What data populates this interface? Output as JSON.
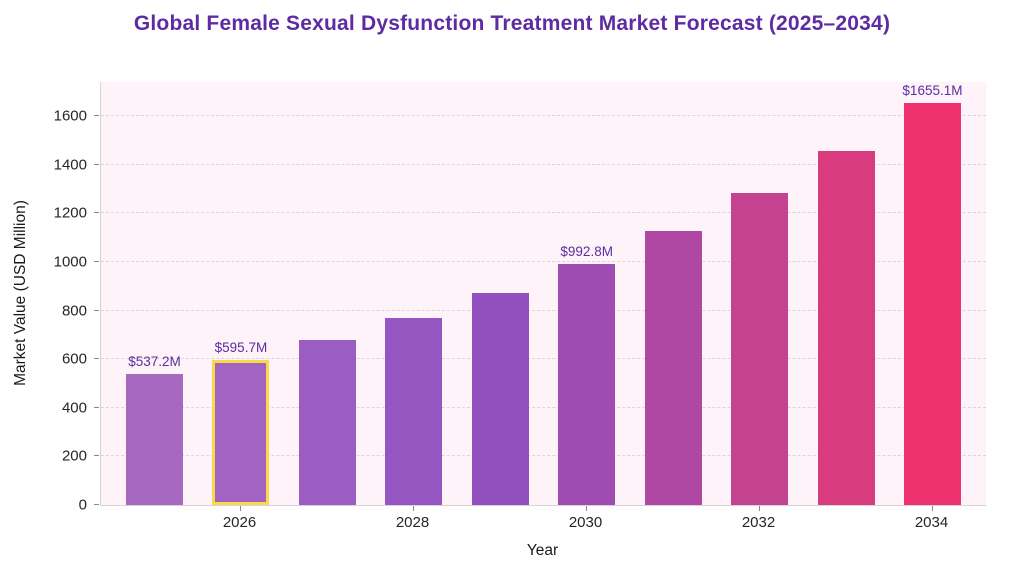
{
  "title": "Global Female Sexual Dysfunction Treatment Market Forecast (2025–2034)",
  "title_color": "#5e2ba2",
  "annotation_color": "#5b2da1",
  "plot_background_color": "#fdf3f9",
  "highlight_border_color": "#f8d94a",
  "chart_data": {
    "type": "bar",
    "title": "Global Female Sexual Dysfunction Treatment Market Forecast (2025–2034)",
    "xlabel": "Year",
    "ylabel": "Market Value (USD Million)",
    "categories": [
      "2025",
      "2026",
      "2027",
      "2028",
      "2029",
      "2030",
      "2031",
      "2032",
      "2033",
      "2034"
    ],
    "values": [
      537.2,
      595.7,
      676.9,
      769.0,
      873.7,
      992.8,
      1128.0,
      1281.6,
      1456.2,
      1655.1
    ],
    "bar_colors": [
      "#a668c1",
      "#a263c2",
      "#9c5dc2",
      "#9656c1",
      "#9150be",
      "#9f4cb2",
      "#af48a2",
      "#c34390",
      "#d83c7f",
      "#ef316f"
    ],
    "highlighted_category": "2026",
    "annotations": [
      {
        "category": "2025",
        "label": "$537.2M"
      },
      {
        "category": "2026",
        "label": "$595.7M"
      },
      {
        "category": "2030",
        "label": "$992.8M"
      },
      {
        "category": "2034",
        "label": "$1655.1M"
      }
    ],
    "ylim": [
      0,
      1740
    ],
    "yticks": [
      0,
      200,
      400,
      600,
      800,
      1000,
      1200,
      1400,
      1600
    ],
    "xtick_labels": [
      "2026",
      "2028",
      "2030",
      "2032",
      "2034"
    ],
    "grid": "horizontal-dashed",
    "legend": "none"
  }
}
